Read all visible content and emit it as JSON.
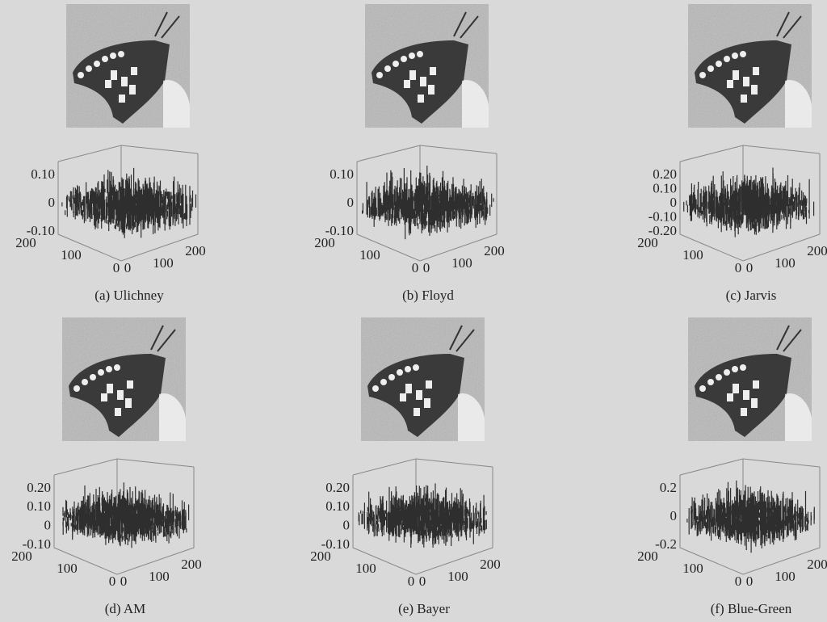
{
  "panels": [
    {
      "caption": "(a) Ulichney",
      "z_ticks": [
        "0.10",
        "0",
        "-0.10"
      ],
      "left_ticks": [
        "200",
        "100",
        "0"
      ],
      "right_ticks": [
        "0",
        "100",
        "200"
      ]
    },
    {
      "caption": "(b) Floyd",
      "z_ticks": [
        "0.10",
        "0",
        "-0.10"
      ],
      "left_ticks": [
        "200",
        "100",
        "0"
      ],
      "right_ticks": [
        "0",
        "100",
        "200"
      ]
    },
    {
      "caption": "(c) Jarvis",
      "z_ticks": [
        "0.20",
        "0.10",
        "0",
        "-0.10",
        "-0.20"
      ],
      "left_ticks": [
        "200",
        "100",
        "0"
      ],
      "right_ticks": [
        "0",
        "100",
        "200"
      ]
    },
    {
      "caption": "(d) AM",
      "z_ticks": [
        "0.20",
        "0.10",
        "0",
        "-0.10"
      ],
      "left_ticks": [
        "200",
        "100",
        "0"
      ],
      "right_ticks": [
        "0",
        "100",
        "200"
      ]
    },
    {
      "caption": "(e) Bayer",
      "z_ticks": [
        "0.20",
        "0.10",
        "0",
        "-0.10"
      ],
      "left_ticks": [
        "200",
        "100",
        "0"
      ],
      "right_ticks": [
        "0",
        "100",
        "200"
      ]
    },
    {
      "caption": "(f) Blue-Green",
      "z_ticks": [
        "0.2",
        "0",
        "-0.2"
      ],
      "left_ticks": [
        "200",
        "100",
        "0"
      ],
      "right_ticks": [
        "0",
        "100",
        "200"
      ]
    }
  ]
}
